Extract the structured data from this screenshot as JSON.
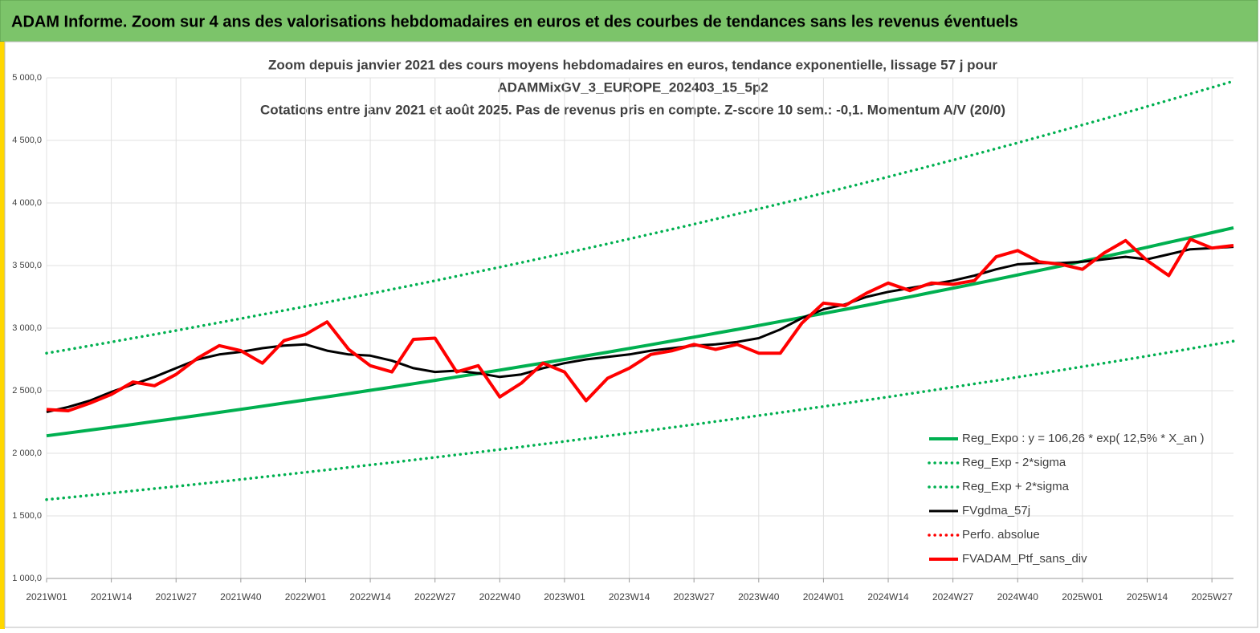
{
  "banner": {
    "title": "ADAM Informe. Zoom sur 4 ans des valorisations hebdomadaires en euros et des courbes de tendances sans les revenus éventuels"
  },
  "chart_data": {
    "type": "line",
    "title_lines": [
      "Zoom depuis janvier 2021 des cours moyens hebdomadaires  en euros, tendance exponentielle, lissage 57 j pour",
      "ADAMMixGV_3_EUROPE_202403_15_5p2",
      "Cotations entre janv 2021 et août 2025. Pas de revenus pris en compte. Z-score 10 sem.: -0,1. Momentum A/V (20/0)"
    ],
    "categories": [
      "2021W01",
      null,
      null,
      "2021W14",
      null,
      null,
      "2021W27",
      null,
      null,
      "2021W40",
      null,
      null,
      "2022W01",
      null,
      null,
      "2022W14",
      null,
      null,
      "2022W27",
      null,
      null,
      "2022W40",
      null,
      null,
      "2023W01",
      null,
      null,
      "2023W14",
      null,
      null,
      "2023W27",
      null,
      null,
      "2023W40",
      null,
      null,
      "2024W01",
      null,
      null,
      "2024W14",
      null,
      null,
      "2024W27",
      null,
      null,
      "2024W40",
      null,
      null,
      "2025W01",
      null,
      null,
      "2025W14",
      null,
      null,
      "2025W27",
      null
    ],
    "ylim": [
      1000,
      5000
    ],
    "yticks": [
      {
        "value": 1000,
        "label": "1 000,0"
      },
      {
        "value": 1500,
        "label": "1 500,0"
      },
      {
        "value": 2000,
        "label": "2 000,0"
      },
      {
        "value": 2500,
        "label": "2 500,0"
      },
      {
        "value": 3000,
        "label": "3 000,0"
      },
      {
        "value": 3500,
        "label": "3 500,0"
      },
      {
        "value": 4000,
        "label": "4 000,0"
      },
      {
        "value": 4500,
        "label": "4 500,0"
      },
      {
        "value": 5000,
        "label": "5 000,0"
      }
    ],
    "grid": true,
    "series": [
      {
        "name": "Reg_Expo : y = 106,26 * exp( 12,5% *  X_an )",
        "color": "#00b050",
        "style": "solid",
        "values": [
          2140,
          2162,
          2185,
          2208,
          2231,
          2255,
          2278,
          2302,
          2327,
          2351,
          2376,
          2401,
          2426,
          2451,
          2477,
          2503,
          2529,
          2556,
          2583,
          2610,
          2637,
          2665,
          2693,
          2721,
          2750,
          2779,
          2808,
          2838,
          2867,
          2898,
          2928,
          2959,
          2990,
          3021,
          3053,
          3085,
          3117,
          3150,
          3183,
          3217,
          3250,
          3285,
          3319,
          3354,
          3389,
          3425,
          3461,
          3497,
          3534,
          3571,
          3608,
          3646,
          3685,
          3723,
          3763,
          3802
        ]
      },
      {
        "name": "Reg_Exp - 2*sigma",
        "color": "#00b050",
        "style": "dotted",
        "values": [
          1630,
          1647,
          1664,
          1682,
          1700,
          1718,
          1735,
          1754,
          1772,
          1791,
          1810,
          1829,
          1848,
          1867,
          1887,
          1907,
          1926,
          1947,
          1967,
          1988,
          2009,
          2030,
          2051,
          2073,
          2095,
          2117,
          2139,
          2161,
          2184,
          2207,
          2230,
          2254,
          2277,
          2301,
          2325,
          2350,
          2374,
          2399,
          2425,
          2450,
          2476,
          2502,
          2528,
          2555,
          2581,
          2609,
          2636,
          2664,
          2692,
          2720,
          2748,
          2777,
          2806,
          2836,
          2866,
          2896
        ]
      },
      {
        "name": "Reg_Exp + 2*sigma",
        "color": "#00b050",
        "style": "dotted",
        "values": [
          2800,
          2829,
          2859,
          2889,
          2920,
          2950,
          2981,
          3013,
          3044,
          3076,
          3109,
          3141,
          3174,
          3207,
          3241,
          3275,
          3310,
          3344,
          3379,
          3415,
          3451,
          3487,
          3524,
          3561,
          3598,
          3636,
          3674,
          3713,
          3752,
          3791,
          3831,
          3871,
          3912,
          3953,
          3994,
          4036,
          4079,
          4122,
          4165,
          4209,
          4253,
          4298,
          4343,
          4388,
          4434,
          4481,
          4528,
          4576,
          4624,
          4672,
          4721,
          4771,
          4821,
          4872,
          4923,
          4974
        ]
      },
      {
        "name": "FVgdma_57j",
        "color": "#000000",
        "style": "solid",
        "values": [
          2330,
          2370,
          2420,
          2490,
          2550,
          2610,
          2680,
          2750,
          2790,
          2810,
          2840,
          2860,
          2870,
          2820,
          2790,
          2780,
          2740,
          2680,
          2650,
          2660,
          2640,
          2610,
          2630,
          2680,
          2720,
          2750,
          2770,
          2790,
          2820,
          2840,
          2860,
          2870,
          2890,
          2920,
          2990,
          3080,
          3150,
          3190,
          3250,
          3290,
          3320,
          3350,
          3380,
          3420,
          3470,
          3510,
          3520,
          3520,
          3530,
          3550,
          3570,
          3550,
          3590,
          3630,
          3640,
          3650
        ]
      },
      {
        "name": "Perfo. absolue",
        "color": "#ff0000",
        "style": "dotted",
        "values": [
          null,
          null,
          null,
          null,
          null,
          null,
          null,
          null,
          null,
          null,
          null,
          null,
          null,
          null,
          null,
          null,
          null,
          null,
          null,
          null,
          null,
          null,
          null,
          null,
          null,
          null,
          null,
          null,
          null,
          null,
          null,
          null,
          null,
          null,
          null,
          null,
          null,
          null,
          null,
          null,
          null,
          null,
          null,
          null,
          null,
          null,
          null,
          null,
          null,
          null,
          null,
          null,
          null,
          null,
          null,
          null
        ]
      },
      {
        "name": "FVADAM_Ptf_sans_div",
        "color": "#ff0000",
        "style": "solid",
        "values": [
          2350,
          2340,
          2400,
          2470,
          2570,
          2540,
          2630,
          2760,
          2860,
          2820,
          2720,
          2900,
          2950,
          3050,
          2830,
          2700,
          2650,
          2910,
          2920,
          2650,
          2700,
          2450,
          2560,
          2720,
          2650,
          2420,
          2600,
          2680,
          2790,
          2820,
          2870,
          2830,
          2870,
          2800,
          2800,
          3040,
          3200,
          3180,
          3280,
          3360,
          3300,
          3360,
          3350,
          3380,
          3570,
          3620,
          3530,
          3510,
          3470,
          3600,
          3700,
          3540,
          3420,
          3710,
          3640,
          3660
        ]
      }
    ]
  }
}
